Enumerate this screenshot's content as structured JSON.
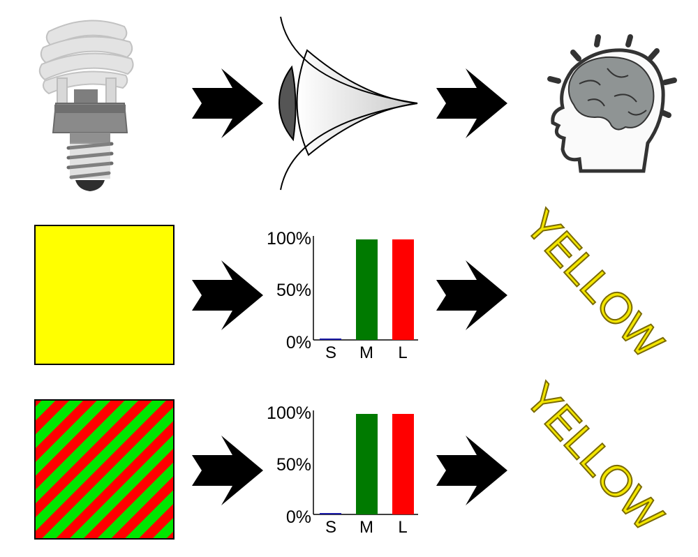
{
  "colors": {
    "yellow": "#ffff00",
    "stripe_green": "#00e600",
    "stripe_red": "#ff0000",
    "bar_s": "#1a1aa6",
    "bar_m": "#007a00",
    "bar_l": "#ff0000",
    "arrow": "#000000",
    "word_fill": "#f3e600",
    "word_stroke": "#7a6a00"
  },
  "icons": {
    "source": "light-bulb-icon",
    "sensor": "eye-icon",
    "perception": "head-brain-icon"
  },
  "rows": [
    {
      "stimulus": "solid-yellow-square",
      "word": "YELLOW"
    },
    {
      "stimulus": "red-green-striped-square",
      "word": "YELLOW"
    }
  ],
  "chart_data": [
    {
      "type": "bar",
      "categories": [
        "S",
        "M",
        "L"
      ],
      "values": [
        1,
        100,
        100
      ],
      "ylim": [
        0,
        100
      ],
      "yticks": [
        "0%",
        "50%",
        "100%"
      ]
    },
    {
      "type": "bar",
      "categories": [
        "S",
        "M",
        "L"
      ],
      "values": [
        1,
        100,
        100
      ],
      "ylim": [
        0,
        100
      ],
      "yticks": [
        "0%",
        "50%",
        "100%"
      ]
    }
  ]
}
